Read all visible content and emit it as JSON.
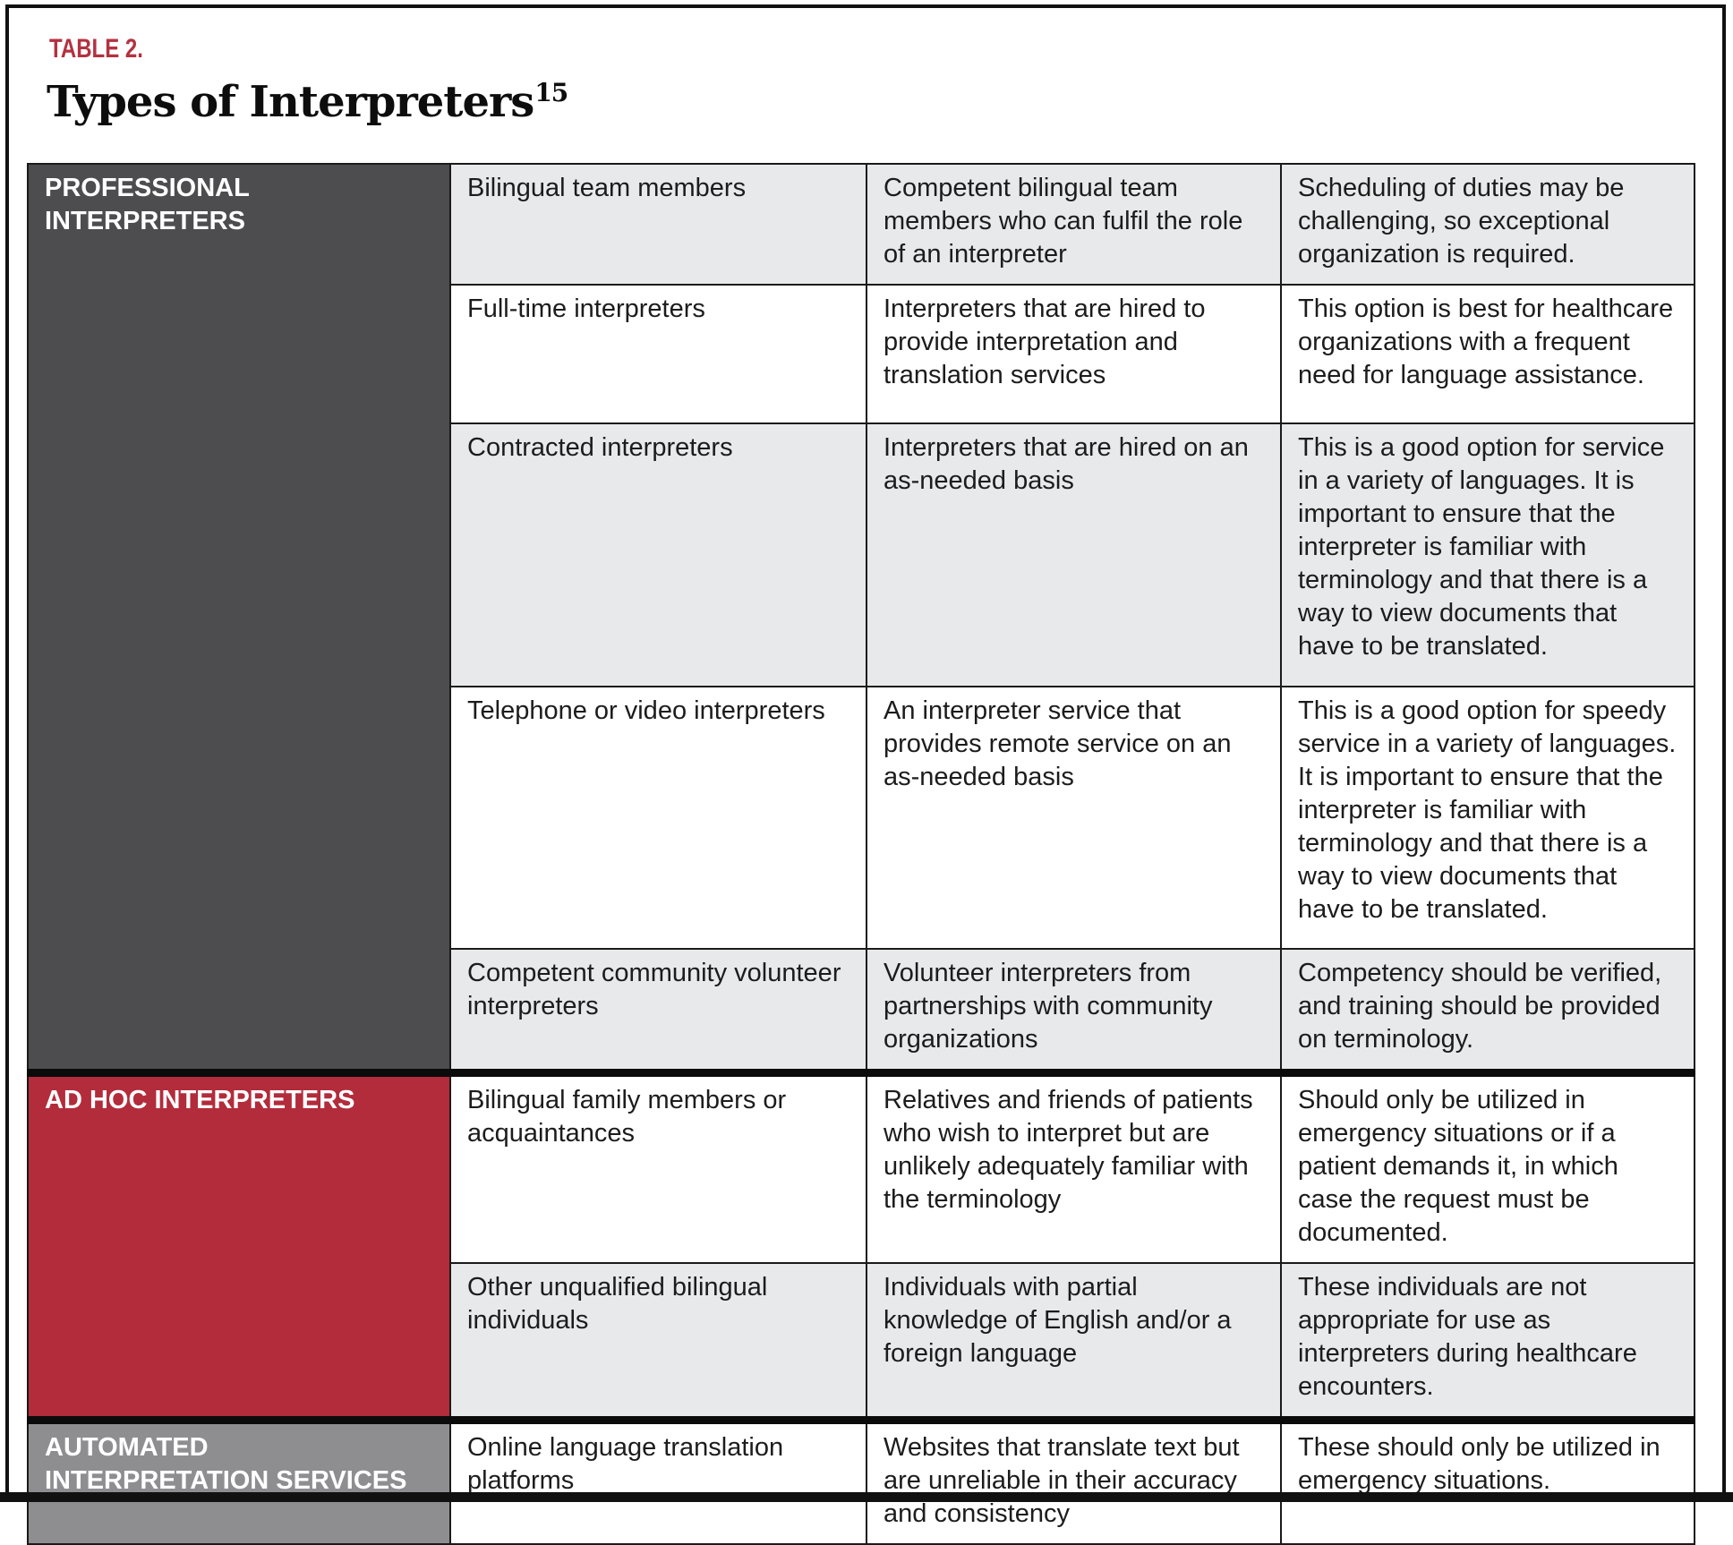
{
  "page": {
    "table_label": "TABLE 2.",
    "title": "Types of Interpreters",
    "title_superscript": "15"
  },
  "colors": {
    "accent_red": "#b22c3b",
    "label_red": "#b33240",
    "category_dark_gray": "#4d4d4f",
    "category_medium_gray": "#8e8e91",
    "row_shaded": "#e8e9ea",
    "row_plain": "#ffffff",
    "border_black": "#1a1a1a"
  },
  "table": {
    "sections": [
      {
        "category": "PROFESSIONAL INTERPRETERS",
        "rows": [
          {
            "type": "Bilingual team members",
            "description": "Competent bilingual team members who can fulfil the role of an interpreter",
            "note": "Scheduling of duties may be challenging, so exceptional organization is required."
          },
          {
            "type": "Full-time interpreters",
            "description": "Interpreters that are hired to provide interpretation and translation services",
            "note": "This option is best for healthcare organizations with a frequent need for language assistance."
          },
          {
            "type": "Contracted interpreters",
            "description": "Interpreters that are hired on an as-needed basis",
            "note": "This is a good option for service in a variety of languages. It is important to ensure that the interpreter is familiar with terminology and that there is a way to view documents that have to be translated."
          },
          {
            "type": "Telephone or video interpreters",
            "description": "An interpreter service that provides remote service on an as-needed basis",
            "note": "This is a good option for speedy service in a variety of languages. It is important to ensure that the interpreter is familiar with terminology and that there is a way to view documents that have to be translated."
          },
          {
            "type": "Competent community volunteer interpreters",
            "description": "Volunteer interpreters from partnerships with community organizations",
            "note": "Competency should be verified, and training should be provided on terminology."
          }
        ]
      },
      {
        "category": "AD HOC INTERPRETERS",
        "rows": [
          {
            "type": "Bilingual family members or acquaintances",
            "description": "Relatives and friends of patients who wish to interpret but are unlikely adequately familiar with the terminology",
            "note": "Should only be utilized in emergency situations or if a patient demands it, in which case the request must be documented."
          },
          {
            "type": "Other unqualified bilingual individuals",
            "description": "Individuals with partial knowledge of English and/or a foreign language",
            "note": "These individuals are not appropriate for use as interpreters during healthcare encounters."
          }
        ]
      },
      {
        "category": "AUTOMATED INTERPRETATION SERVICES",
        "rows": [
          {
            "type": "Online language translation platforms",
            "description": "Websites that translate text but are unreliable in their accuracy and consistency",
            "note": "These should only be utilized in emergency situations."
          }
        ]
      }
    ]
  }
}
